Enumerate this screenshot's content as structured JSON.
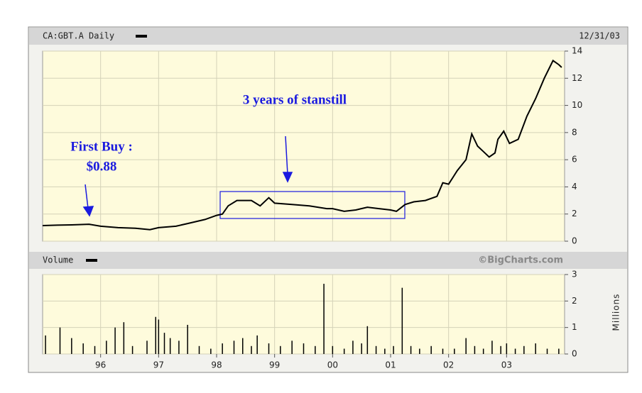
{
  "header": {
    "symbol": "CA:GBT.A Daily",
    "date": "12/31/03"
  },
  "chart_data": [
    {
      "type": "line",
      "color": "#000000",
      "annotations": [
        "First Buy :",
        "$0.88",
        "3 years of stanstill"
      ],
      "x": [
        1995.0,
        1995.25,
        1995.5,
        1995.8,
        1996.0,
        1996.3,
        1996.6,
        1996.85,
        1997.0,
        1997.3,
        1997.5,
        1997.8,
        1998.0,
        1998.1,
        1998.2,
        1998.35,
        1998.6,
        1998.75,
        1998.9,
        1999.0,
        1999.3,
        1999.6,
        1999.9,
        2000.0,
        2000.2,
        2000.4,
        2000.6,
        2000.8,
        2001.0,
        2001.1,
        2001.25,
        2001.4,
        2001.6,
        2001.8,
        2001.9,
        2002.0,
        2002.15,
        2002.3,
        2002.4,
        2002.5,
        2002.6,
        2002.7,
        2002.8,
        2002.85,
        2002.95,
        2003.05,
        2003.2,
        2003.35,
        2003.5,
        2003.65,
        2003.8,
        2003.9,
        2003.95
      ],
      "values": [
        1.15,
        1.18,
        1.2,
        1.25,
        1.1,
        1.0,
        0.95,
        0.85,
        1.0,
        1.1,
        1.3,
        1.6,
        1.9,
        2.0,
        2.6,
        3.0,
        3.0,
        2.6,
        3.2,
        2.8,
        2.7,
        2.6,
        2.4,
        2.4,
        2.2,
        2.3,
        2.5,
        2.4,
        2.3,
        2.2,
        2.7,
        2.9,
        3.0,
        3.3,
        4.3,
        4.2,
        5.2,
        6.0,
        7.9,
        7.0,
        6.6,
        6.2,
        6.5,
        7.5,
        8.1,
        7.2,
        7.5,
        9.2,
        10.5,
        12.0,
        13.3,
        13.0,
        12.8
      ],
      "xlim": [
        1995,
        2004
      ],
      "ylim": [
        0,
        14
      ],
      "yticks": [
        0,
        2,
        4,
        6,
        8,
        10,
        12,
        14
      ],
      "grid": true
    },
    {
      "type": "bar",
      "title": "Volume",
      "source": "©BigCharts.com",
      "y_label": "Millions",
      "color": "#000000",
      "x": [
        1995.05,
        1995.3,
        1995.5,
        1995.7,
        1995.9,
        1996.1,
        1996.25,
        1996.4,
        1996.55,
        1996.8,
        1996.95,
        1997.0,
        1997.1,
        1997.2,
        1997.35,
        1997.5,
        1997.7,
        1997.9,
        1998.1,
        1998.3,
        1998.45,
        1998.6,
        1998.7,
        1998.9,
        1999.1,
        1999.3,
        1999.5,
        1999.7,
        1999.85,
        2000.0,
        2000.2,
        2000.35,
        2000.5,
        2000.6,
        2000.75,
        2000.9,
        2001.05,
        2001.2,
        2001.35,
        2001.5,
        2001.7,
        2001.9,
        2002.1,
        2002.3,
        2002.45,
        2002.6,
        2002.75,
        2002.9,
        2003.0,
        2003.15,
        2003.3,
        2003.5,
        2003.7,
        2003.9
      ],
      "values": [
        0.7,
        1.0,
        0.6,
        0.4,
        0.3,
        0.5,
        1.0,
        1.2,
        0.3,
        0.5,
        1.4,
        1.3,
        0.8,
        0.6,
        0.5,
        1.1,
        0.3,
        0.2,
        0.4,
        0.5,
        0.6,
        0.3,
        0.7,
        0.4,
        0.3,
        0.5,
        0.4,
        0.3,
        2.65,
        0.3,
        0.2,
        0.5,
        0.4,
        1.05,
        0.3,
        0.2,
        0.3,
        2.5,
        0.3,
        0.2,
        0.3,
        0.2,
        0.2,
        0.6,
        0.3,
        0.2,
        0.5,
        0.3,
        0.4,
        0.2,
        0.3,
        0.4,
        0.2,
        0.2
      ],
      "xlim": [
        1995,
        2004
      ],
      "ylim": [
        0,
        3
      ],
      "yticks": [
        0,
        1,
        2,
        3
      ],
      "xticks": [
        {
          "value": 1996,
          "label": "96"
        },
        {
          "value": 1997,
          "label": "97"
        },
        {
          "value": 1998,
          "label": "98"
        },
        {
          "value": 1999,
          "label": "99"
        },
        {
          "value": 2000,
          "label": "00"
        },
        {
          "value": 2001,
          "label": "01"
        },
        {
          "value": 2002,
          "label": "02"
        },
        {
          "value": 2003,
          "label": "03"
        }
      ],
      "grid": true
    }
  ]
}
